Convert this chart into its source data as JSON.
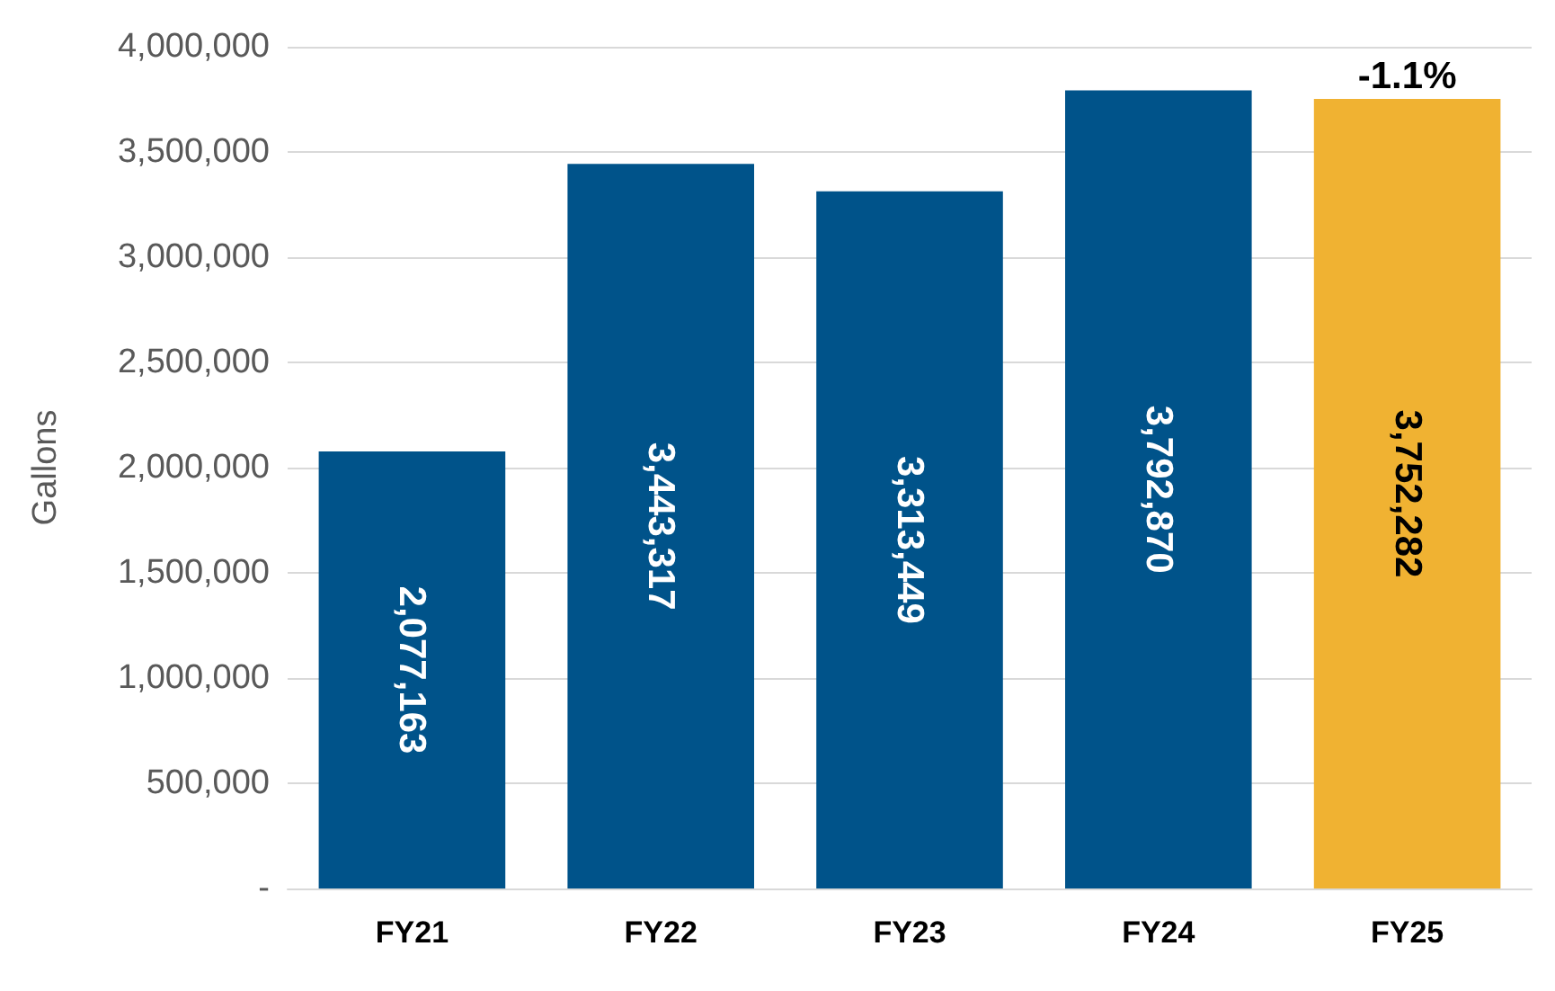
{
  "chart_data": {
    "type": "bar",
    "ylabel": "Gallons",
    "categories": [
      "FY21",
      "FY22",
      "FY23",
      "FY24",
      "FY25"
    ],
    "values": [
      2077163,
      3443317,
      3313449,
      3792870,
      3752282
    ],
    "colors": [
      "#00538a",
      "#00538a",
      "#00538a",
      "#00538a",
      "#f0b232"
    ],
    "value_labels": [
      "2,077,163",
      "3,443,317",
      "3,313,449",
      "3,792,870",
      "3,752,282"
    ],
    "ylim": [
      0,
      4000000
    ],
    "yticks": [
      {
        "value": 0,
        "label": "-"
      },
      {
        "value": 500000,
        "label": "500,000"
      },
      {
        "value": 1000000,
        "label": "1,000,000"
      },
      {
        "value": 1500000,
        "label": "1,500,000"
      },
      {
        "value": 2000000,
        "label": "2,000,000"
      },
      {
        "value": 2500000,
        "label": "2,500,000"
      },
      {
        "value": 3000000,
        "label": "3,000,000"
      },
      {
        "value": 3500000,
        "label": "3,500,000"
      },
      {
        "value": 4000000,
        "label": "4,000,000"
      }
    ],
    "grid": "y",
    "annotations": [
      {
        "text": "-1.1%",
        "x": "FY25",
        "y": 3752282
      }
    ]
  }
}
